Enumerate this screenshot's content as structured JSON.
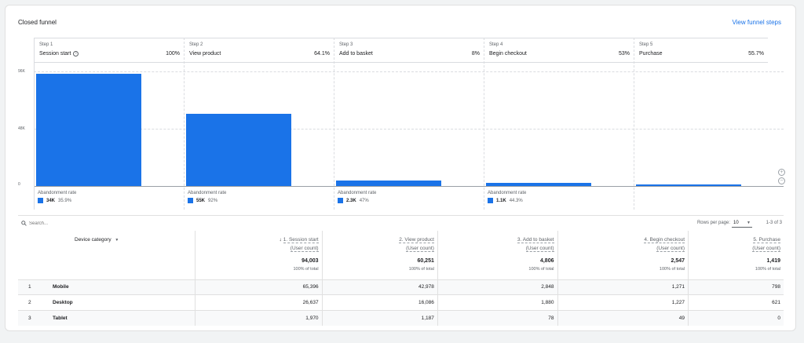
{
  "card": {
    "title": "Closed funnel",
    "link": "View funnel steps"
  },
  "funnel": {
    "y_ticks": [
      "96K",
      "48K",
      "0"
    ],
    "abandon_label": "Abandonment rate",
    "steps": [
      {
        "num": "Step 1",
        "name": "Session start",
        "pct": "100%",
        "value": 94003,
        "abandon_count": "34K",
        "abandon_rate": "35.9%",
        "info": true
      },
      {
        "num": "Step 2",
        "name": "View product",
        "pct": "64.1%",
        "value": 60251,
        "abandon_count": "55K",
        "abandon_rate": "92%"
      },
      {
        "num": "Step 3",
        "name": "Add to basket",
        "pct": "8%",
        "value": 4806,
        "abandon_count": "2.3K",
        "abandon_rate": "47%"
      },
      {
        "num": "Step 4",
        "name": "Begin checkout",
        "pct": "53%",
        "value": 2547,
        "abandon_count": "1.1K",
        "abandon_rate": "44.3%"
      },
      {
        "num": "Step 5",
        "name": "Purchase",
        "pct": "55.7%",
        "value": 1419
      }
    ],
    "y_max": 96000,
    "bar_color": "#1a73e8"
  },
  "table": {
    "search_placeholder": "Search...",
    "rows_per_page_label": "Rows per page:",
    "rows_per_page": "10",
    "pager": "1-3 of 3",
    "dimension": "Device category",
    "metric_sub": "(User count)",
    "columns": [
      "1. Session start",
      "2. View product",
      "3. Add to basket",
      "4. Begin checkout",
      "5. Purchase"
    ],
    "totals": [
      "94,003",
      "60,251",
      "4,806",
      "2,547",
      "1,419"
    ],
    "totals_pct": "100% of total",
    "rows": [
      {
        "idx": "1",
        "name": "Mobile",
        "vals": [
          "65,396",
          "42,978",
          "2,848",
          "1,271",
          "798"
        ]
      },
      {
        "idx": "2",
        "name": "Desktop",
        "vals": [
          "26,637",
          "16,086",
          "1,880",
          "1,227",
          "621"
        ]
      },
      {
        "idx": "3",
        "name": "Tablet",
        "vals": [
          "1,970",
          "1,187",
          "78",
          "49",
          "0"
        ]
      }
    ]
  }
}
